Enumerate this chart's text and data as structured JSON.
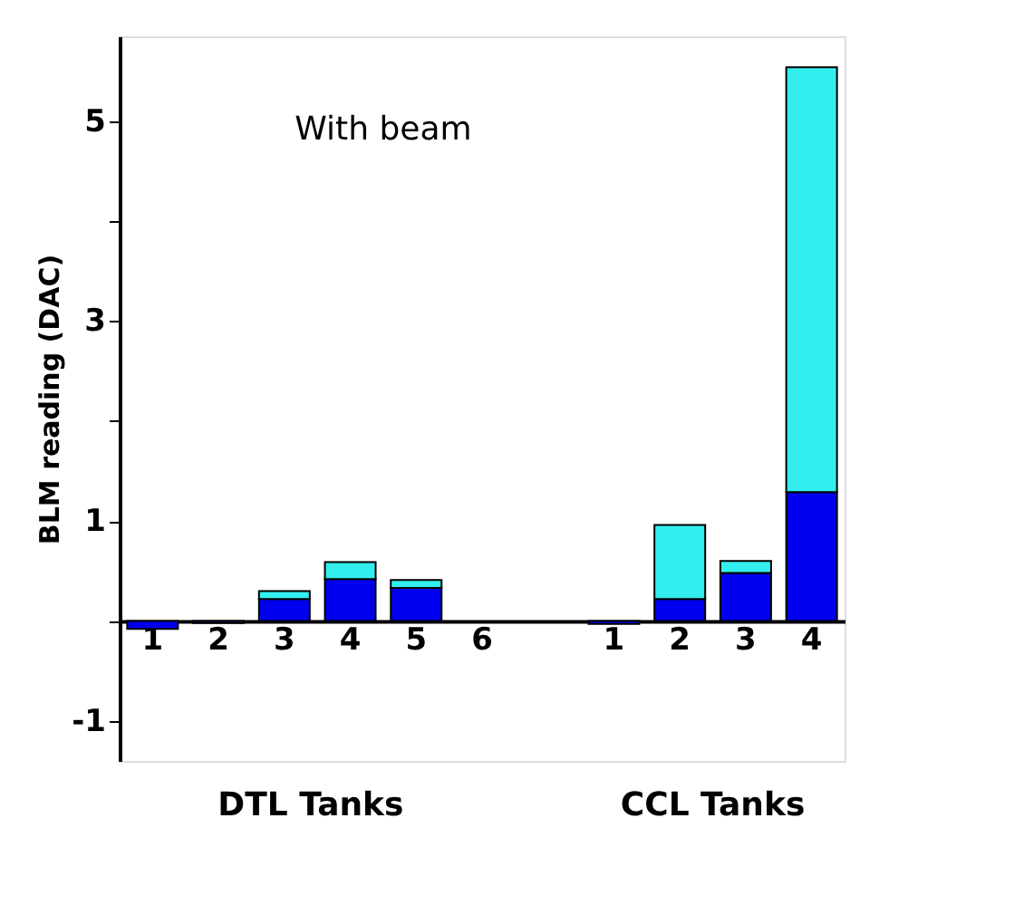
{
  "chart_data": {
    "type": "bar",
    "stacked": true,
    "ylabel": "BLM reading (DAC)",
    "annotations": [
      "With beam",
      "DTL Tanks",
      "CCL Tanks"
    ],
    "categories": [
      "1",
      "2",
      "3",
      "4",
      "5",
      "6",
      null,
      "1",
      "2",
      "3",
      "4"
    ],
    "series": [
      {
        "color": "#0000ee",
        "values": [
          -0.08,
          -0.02,
          0.22,
          0.42,
          0.33,
          null,
          null,
          -0.03,
          0.22,
          0.48,
          1.29
        ]
      },
      {
        "color": "#33eeee",
        "values": [
          null,
          null,
          0.08,
          0.17,
          0.08,
          null,
          null,
          null,
          0.74,
          0.12,
          4.25
        ]
      }
    ],
    "ylim": [
      -1.4,
      5.85
    ],
    "yticks": [
      {
        "value": -1,
        "label": "-1"
      },
      {
        "value": 0,
        "label": null
      },
      1,
      {
        "value": 2,
        "label": null
      },
      3,
      {
        "value": 4,
        "label": null
      },
      5
    ],
    "grid": false,
    "legend": false
  }
}
